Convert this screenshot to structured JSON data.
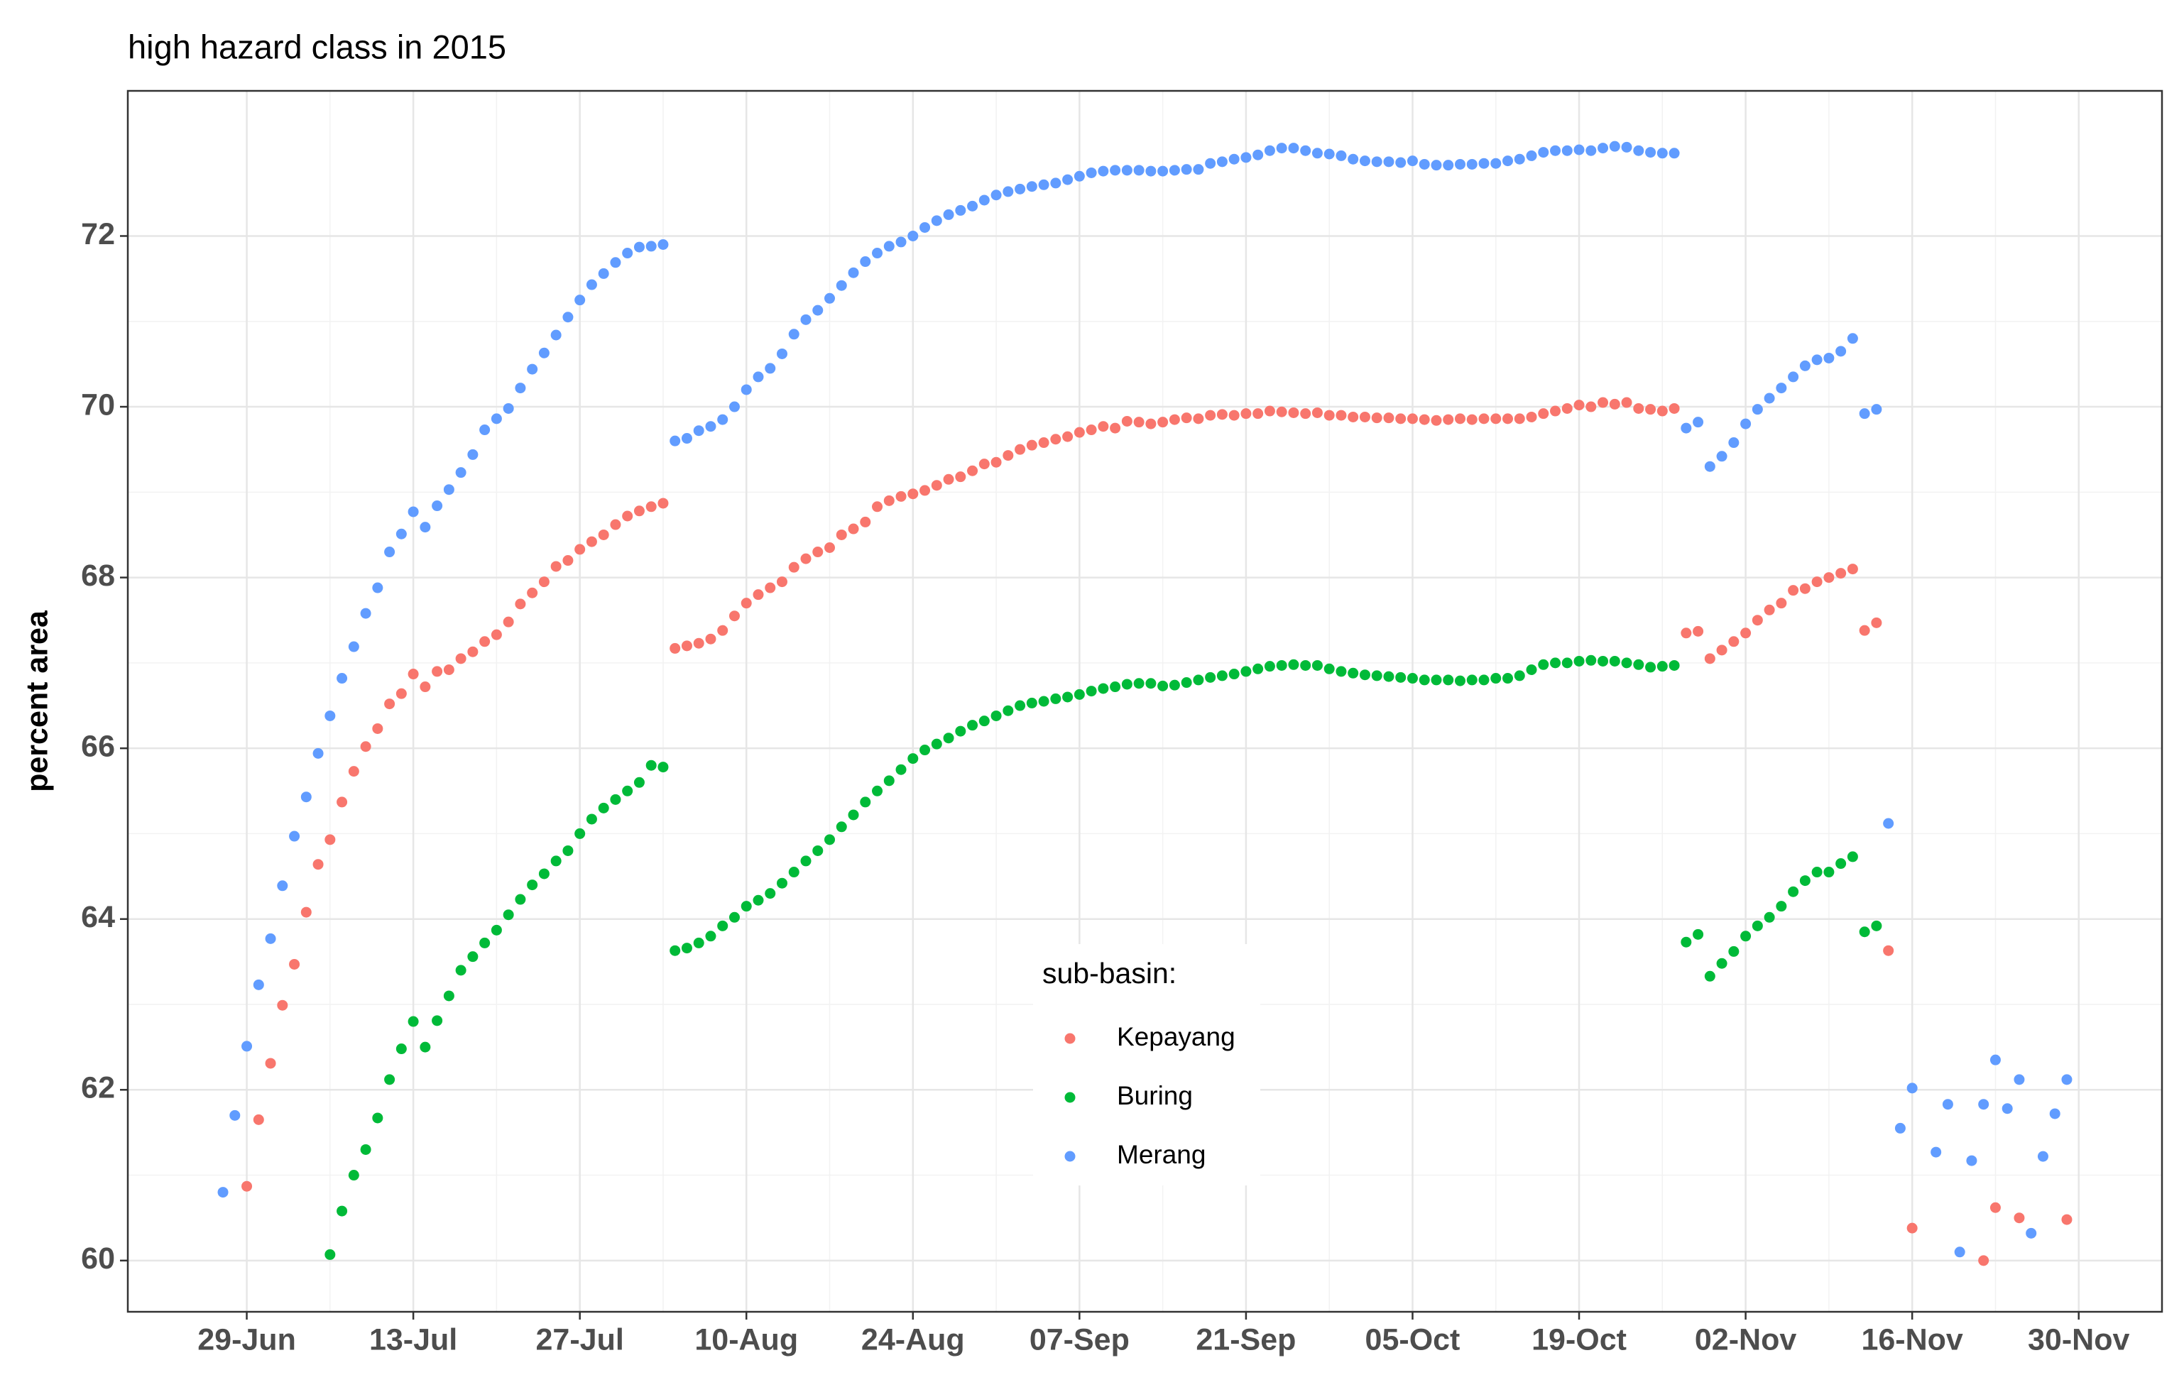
{
  "chart_data": {
    "type": "scatter",
    "title": "high hazard class in 2015",
    "y_label": "percent area",
    "legend_title": "sub-basin:",
    "xlim": [
      "2015-06-19",
      "2015-12-07"
    ],
    "xticks": [
      {
        "value": "2015-06-29",
        "label": "29-Jun"
      },
      {
        "value": "2015-07-13",
        "label": "13-Jul"
      },
      {
        "value": "2015-07-27",
        "label": "27-Jul"
      },
      {
        "value": "2015-08-10",
        "label": "10-Aug"
      },
      {
        "value": "2015-08-24",
        "label": "24-Aug"
      },
      {
        "value": "2015-09-07",
        "label": "07-Sep"
      },
      {
        "value": "2015-09-21",
        "label": "21-Sep"
      },
      {
        "value": "2015-10-05",
        "label": "05-Oct"
      },
      {
        "value": "2015-10-19",
        "label": "19-Oct"
      },
      {
        "value": "2015-11-02",
        "label": "02-Nov"
      },
      {
        "value": "2015-11-16",
        "label": "16-Nov"
      },
      {
        "value": "2015-11-30",
        "label": "30-Nov"
      }
    ],
    "ylim": [
      59.4,
      73.7
    ],
    "yticks": [
      60,
      62,
      64,
      66,
      68,
      70,
      72
    ],
    "grid": true,
    "x": [
      "2015-06-27",
      "2015-06-28",
      "2015-06-29",
      "2015-06-30",
      "2015-07-01",
      "2015-07-02",
      "2015-07-03",
      "2015-07-04",
      "2015-07-05",
      "2015-07-06",
      "2015-07-07",
      "2015-07-08",
      "2015-07-09",
      "2015-07-10",
      "2015-07-11",
      "2015-07-12",
      "2015-07-13",
      "2015-07-14",
      "2015-07-15",
      "2015-07-16",
      "2015-07-17",
      "2015-07-18",
      "2015-07-19",
      "2015-07-20",
      "2015-07-21",
      "2015-07-22",
      "2015-07-23",
      "2015-07-24",
      "2015-07-25",
      "2015-07-26",
      "2015-07-27",
      "2015-07-28",
      "2015-07-29",
      "2015-07-30",
      "2015-07-31",
      "2015-08-01",
      "2015-08-02",
      "2015-08-03",
      "2015-08-04",
      "2015-08-05",
      "2015-08-06",
      "2015-08-07",
      "2015-08-08",
      "2015-08-09",
      "2015-08-10",
      "2015-08-11",
      "2015-08-12",
      "2015-08-13",
      "2015-08-14",
      "2015-08-15",
      "2015-08-16",
      "2015-08-17",
      "2015-08-18",
      "2015-08-19",
      "2015-08-20",
      "2015-08-21",
      "2015-08-22",
      "2015-08-23",
      "2015-08-24",
      "2015-08-25",
      "2015-08-26",
      "2015-08-27",
      "2015-08-28",
      "2015-08-29",
      "2015-08-30",
      "2015-08-31",
      "2015-09-01",
      "2015-09-02",
      "2015-09-03",
      "2015-09-04",
      "2015-09-05",
      "2015-09-06",
      "2015-09-07",
      "2015-09-08",
      "2015-09-09",
      "2015-09-10",
      "2015-09-11",
      "2015-09-12",
      "2015-09-13",
      "2015-09-14",
      "2015-09-15",
      "2015-09-16",
      "2015-09-17",
      "2015-09-18",
      "2015-09-19",
      "2015-09-20",
      "2015-09-21",
      "2015-09-22",
      "2015-09-23",
      "2015-09-24",
      "2015-09-25",
      "2015-09-26",
      "2015-09-27",
      "2015-09-28",
      "2015-09-29",
      "2015-09-30",
      "2015-10-01",
      "2015-10-02",
      "2015-10-03",
      "2015-10-04",
      "2015-10-05",
      "2015-10-06",
      "2015-10-07",
      "2015-10-08",
      "2015-10-09",
      "2015-10-10",
      "2015-10-11",
      "2015-10-12",
      "2015-10-13",
      "2015-10-14",
      "2015-10-15",
      "2015-10-16",
      "2015-10-17",
      "2015-10-18",
      "2015-10-19",
      "2015-10-20",
      "2015-10-21",
      "2015-10-22",
      "2015-10-23",
      "2015-10-24",
      "2015-10-25",
      "2015-10-26",
      "2015-10-27",
      "2015-10-28",
      "2015-10-29",
      "2015-10-30",
      "2015-10-31",
      "2015-11-01",
      "2015-11-02",
      "2015-11-03",
      "2015-11-04",
      "2015-11-05",
      "2015-11-06",
      "2015-11-07",
      "2015-11-08",
      "2015-11-09",
      "2015-11-10",
      "2015-11-11",
      "2015-11-12",
      "2015-11-13",
      "2015-11-14",
      "2015-11-15",
      "2015-11-16",
      "2015-11-17",
      "2015-11-18",
      "2015-11-19",
      "2015-11-20",
      "2015-11-21",
      "2015-11-22",
      "2015-11-23",
      "2015-11-24",
      "2015-11-25",
      "2015-11-26",
      "2015-11-27",
      "2015-11-28",
      "2015-11-29"
    ],
    "series": [
      {
        "name": "Kepayang",
        "color": "#F8766D",
        "values": [
          null,
          null,
          60.87,
          61.65,
          62.31,
          62.99,
          63.47,
          64.08,
          64.64,
          64.93,
          65.37,
          65.73,
          66.02,
          66.23,
          66.52,
          66.64,
          66.87,
          66.72,
          66.9,
          66.92,
          67.05,
          67.13,
          67.25,
          67.33,
          67.48,
          67.69,
          67.82,
          67.95,
          68.13,
          68.2,
          68.33,
          68.42,
          68.5,
          68.62,
          68.72,
          68.78,
          68.83,
          68.87,
          67.17,
          67.2,
          67.23,
          67.28,
          67.38,
          67.55,
          67.7,
          67.8,
          67.88,
          67.95,
          68.12,
          68.22,
          68.3,
          68.35,
          68.5,
          68.57,
          68.65,
          68.83,
          68.9,
          68.95,
          68.98,
          69.02,
          69.08,
          69.15,
          69.18,
          69.25,
          69.33,
          69.35,
          69.43,
          69.5,
          69.55,
          69.58,
          69.62,
          69.65,
          69.7,
          69.73,
          69.77,
          69.75,
          69.83,
          69.82,
          69.8,
          69.82,
          69.85,
          69.87,
          69.86,
          69.9,
          69.91,
          69.9,
          69.92,
          69.92,
          69.95,
          69.94,
          69.93,
          69.92,
          69.93,
          69.9,
          69.9,
          69.88,
          69.88,
          69.87,
          69.87,
          69.86,
          69.86,
          69.85,
          69.84,
          69.85,
          69.86,
          69.85,
          69.86,
          69.86,
          69.86,
          69.86,
          69.88,
          69.92,
          69.95,
          69.98,
          70.02,
          70.0,
          70.05,
          70.03,
          70.05,
          69.98,
          69.97,
          69.95,
          69.98,
          67.35,
          67.37,
          67.05,
          67.15,
          67.25,
          67.35,
          67.5,
          67.62,
          67.7,
          67.85,
          67.87,
          67.95,
          68.0,
          68.05,
          68.1,
          67.38,
          67.47,
          63.63,
          null,
          60.38,
          null,
          null,
          null,
          null,
          null,
          60.0,
          60.62,
          null,
          60.5,
          null,
          null,
          null,
          60.48
        ]
      },
      {
        "name": "Buring",
        "color": "#00BA38",
        "values": [
          null,
          null,
          null,
          null,
          null,
          null,
          null,
          null,
          null,
          60.07,
          60.58,
          61.0,
          61.3,
          61.67,
          62.12,
          62.48,
          62.8,
          62.5,
          62.81,
          63.1,
          63.4,
          63.56,
          63.72,
          63.87,
          64.05,
          64.23,
          64.4,
          64.53,
          64.68,
          64.8,
          65.0,
          65.17,
          65.3,
          65.4,
          65.5,
          65.6,
          65.8,
          65.78,
          63.63,
          63.66,
          63.72,
          63.8,
          63.92,
          64.02,
          64.15,
          64.22,
          64.3,
          64.42,
          64.55,
          64.68,
          64.8,
          64.93,
          65.08,
          65.22,
          65.37,
          65.5,
          65.62,
          65.75,
          65.88,
          65.98,
          66.05,
          66.12,
          66.2,
          66.27,
          66.32,
          66.38,
          66.44,
          66.5,
          66.53,
          66.55,
          66.58,
          66.6,
          66.63,
          66.67,
          66.7,
          66.72,
          66.75,
          66.76,
          66.76,
          66.73,
          66.74,
          66.77,
          66.8,
          66.83,
          66.85,
          66.87,
          66.9,
          66.93,
          66.96,
          66.97,
          66.98,
          66.97,
          66.97,
          66.93,
          66.9,
          66.88,
          66.86,
          66.85,
          66.84,
          66.83,
          66.82,
          66.8,
          66.8,
          66.8,
          66.79,
          66.8,
          66.8,
          66.82,
          66.82,
          66.85,
          66.92,
          66.98,
          67.0,
          67.0,
          67.02,
          67.03,
          67.02,
          67.02,
          67.0,
          66.98,
          66.95,
          66.96,
          66.97,
          63.73,
          63.82,
          63.33,
          63.48,
          63.62,
          63.8,
          63.92,
          64.02,
          64.15,
          64.32,
          64.45,
          64.55,
          64.55,
          64.65,
          64.73,
          63.85,
          63.92,
          null,
          null,
          null,
          null,
          null,
          null,
          null,
          null,
          null,
          null,
          null,
          null,
          null,
          null,
          null,
          null
        ]
      },
      {
        "name": "Merang",
        "color": "#619CFF",
        "values": [
          60.8,
          61.7,
          62.51,
          63.23,
          63.77,
          64.39,
          64.97,
          65.43,
          65.94,
          66.38,
          66.82,
          67.19,
          67.58,
          67.88,
          68.3,
          68.51,
          68.77,
          68.59,
          68.84,
          69.03,
          69.23,
          69.44,
          69.73,
          69.86,
          69.98,
          70.22,
          70.44,
          70.63,
          70.84,
          71.05,
          71.25,
          71.43,
          71.56,
          71.69,
          71.8,
          71.87,
          71.88,
          71.9,
          69.6,
          69.63,
          69.72,
          69.77,
          69.85,
          70.0,
          70.2,
          70.35,
          70.45,
          70.62,
          70.85,
          71.02,
          71.13,
          71.27,
          71.42,
          71.57,
          71.7,
          71.8,
          71.88,
          71.93,
          72.0,
          72.1,
          72.18,
          72.25,
          72.3,
          72.35,
          72.42,
          72.48,
          72.52,
          72.55,
          72.58,
          72.6,
          72.62,
          72.66,
          72.7,
          72.74,
          72.76,
          72.77,
          72.77,
          72.77,
          72.76,
          72.76,
          72.77,
          72.78,
          72.78,
          72.85,
          72.87,
          72.9,
          72.92,
          72.95,
          73.0,
          73.03,
          73.03,
          73.0,
          72.97,
          72.96,
          72.94,
          72.9,
          72.88,
          72.87,
          72.87,
          72.86,
          72.88,
          72.84,
          72.83,
          72.83,
          72.84,
          72.84,
          72.85,
          72.85,
          72.88,
          72.9,
          72.94,
          72.98,
          73.0,
          73.0,
          73.01,
          73.0,
          73.03,
          73.05,
          73.04,
          73.0,
          72.98,
          72.97,
          72.97,
          69.75,
          69.82,
          69.3,
          69.42,
          69.58,
          69.8,
          69.97,
          70.1,
          70.22,
          70.35,
          70.48,
          70.55,
          70.57,
          70.65,
          70.8,
          69.92,
          69.97,
          65.12,
          61.55,
          62.02,
          null,
          61.27,
          61.83,
          60.1,
          61.17,
          61.83,
          62.35,
          61.78,
          62.12,
          60.32,
          61.22,
          61.72,
          62.12
        ]
      }
    ]
  }
}
